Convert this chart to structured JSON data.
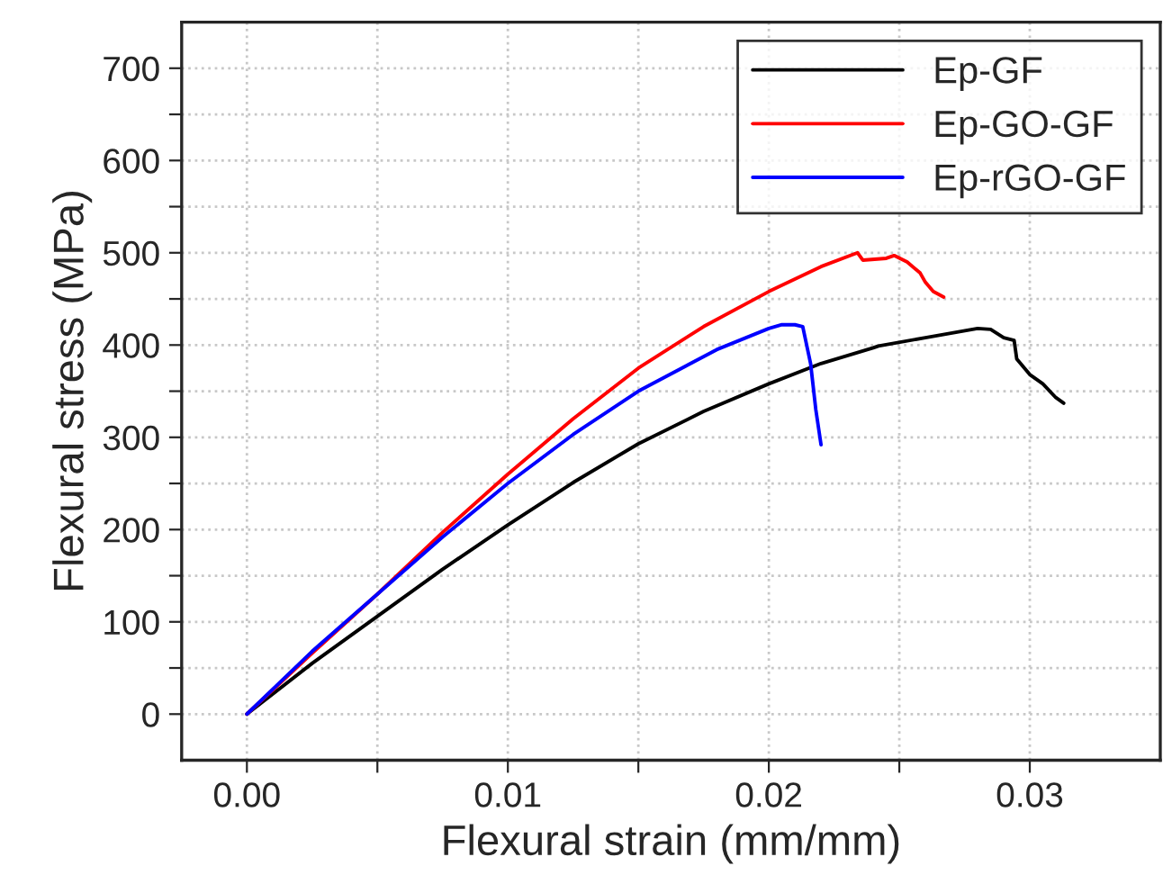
{
  "chart_data": {
    "type": "line",
    "xlabel": "Flexural strain (mm/mm)",
    "ylabel": "Flexural stress (MPa)",
    "xlim": [
      -0.0025,
      0.035
    ],
    "ylim": [
      -50,
      750
    ],
    "xticks": [
      {
        "value": 0,
        "label": "0.00"
      },
      {
        "value": 0.005,
        "label": null
      },
      {
        "value": 0.01,
        "label": "0.01"
      },
      {
        "value": 0.015,
        "label": null
      },
      {
        "value": 0.02,
        "label": "0.02"
      },
      {
        "value": 0.025,
        "label": null
      },
      {
        "value": 0.03,
        "label": "0.03"
      }
    ],
    "yticks": [
      0,
      {
        "value": 50,
        "label": null
      },
      100,
      {
        "value": 150,
        "label": null
      },
      200,
      {
        "value": 250,
        "label": null
      },
      300,
      {
        "value": 350,
        "label": null
      },
      400,
      {
        "value": 450,
        "label": null
      },
      500,
      {
        "value": 550,
        "label": null
      },
      600,
      {
        "value": 650,
        "label": null
      },
      700
    ],
    "grid": true,
    "legend": "top right",
    "line_style": "solid",
    "marker": "none",
    "series": [
      {
        "name": "Ep-GF",
        "color": "#000000",
        "x": [
          0,
          0.0025,
          0.005,
          0.0075,
          0.01,
          0.0125,
          0.015,
          0.0175,
          0.02,
          0.022,
          0.024,
          0.0242,
          0.026,
          0.028,
          0.0285,
          0.029,
          0.0294,
          0.0295,
          0.03,
          0.0305,
          0.031,
          0.0313
        ],
        "values": [
          0,
          55,
          106,
          157,
          205,
          251,
          293,
          328,
          358,
          380,
          397,
          399,
          408,
          418,
          417,
          408,
          405,
          385,
          368,
          358,
          343,
          337
        ]
      },
      {
        "name": "Ep-GO-GF",
        "color": "#ff0000",
        "x": [
          0,
          0.0025,
          0.005,
          0.0075,
          0.01,
          0.0125,
          0.015,
          0.0175,
          0.02,
          0.022,
          0.0234,
          0.0236,
          0.0245,
          0.0248,
          0.0253,
          0.0258,
          0.026,
          0.0263,
          0.0267
        ],
        "values": [
          0,
          66,
          130,
          197,
          260,
          320,
          375,
          420,
          458,
          485,
          500,
          492,
          494,
          497,
          490,
          478,
          468,
          458,
          452
        ]
      },
      {
        "name": "Ep-rGO-GF",
        "color": "#0000ff",
        "x": [
          0,
          0.0025,
          0.005,
          0.0075,
          0.01,
          0.0125,
          0.015,
          0.018,
          0.02,
          0.0205,
          0.021,
          0.0213,
          0.0216,
          0.0218,
          0.022
        ],
        "values": [
          0,
          68,
          130,
          192,
          250,
          303,
          350,
          395,
          418,
          422,
          422,
          420,
          380,
          330,
          292
        ]
      }
    ]
  }
}
